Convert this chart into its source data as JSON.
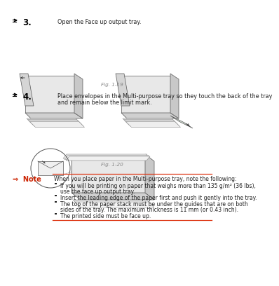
{
  "bg_color": "#ffffff",
  "step3_num": "3.",
  "step3_text": "Open the Face up output tray.",
  "fig119_label": "Fig. 1-19",
  "step4_num": "4.",
  "step4_line1": "Place envelopes in the Multi-purpose tray so they touch the back of the tray",
  "step4_line2": "and remain below the limit mark.",
  "fig120_label": "Fig. 1-20",
  "note_label": "⇒  Note",
  "note_header": "When you place paper in the Multi-purpose tray, note the following:",
  "note_bullets": [
    "If you will be printing on paper that weighs more than 135 g/m² (36 lbs),\nuse the face up output tray.",
    "Insert the leading edge of the paper first and push it gently into the tray.",
    "The top of the paper stack must be under the guides that are on both\nsides of the tray. The maximum thickness is 11 mm (or 0.43 inch).",
    "The printed side must be face up."
  ],
  "note_color": "#cc2200",
  "text_color": "#222222",
  "line_color": "#dd3311",
  "gray_text": "#888888",
  "body_fontsize": 5.8,
  "note_fontsize": 5.5,
  "label_fontsize": 5.2,
  "step_num_fontsize": 8.5
}
